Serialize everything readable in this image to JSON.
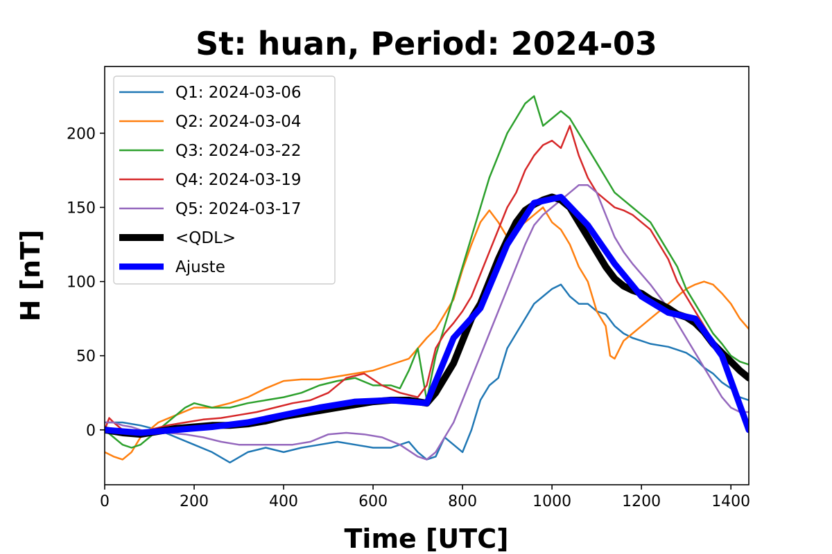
{
  "chart_data": {
    "type": "line",
    "title": "St: huan, Period: 2024-03",
    "xlabel": "Time [UTC]",
    "ylabel": "H [nT]",
    "xlim": [
      0,
      1440
    ],
    "ylim": [
      -37,
      245
    ],
    "xticks": [
      0,
      200,
      400,
      600,
      800,
      1000,
      1200,
      1400
    ],
    "yticks": [
      0,
      50,
      100,
      150,
      200
    ],
    "grid": false,
    "legend_position": "top-left",
    "series": [
      {
        "name": "Q1: 2024-03-06",
        "color": "#1f77b4",
        "width": 2.5,
        "x": [
          0,
          40,
          80,
          120,
          160,
          200,
          240,
          280,
          320,
          360,
          400,
          440,
          480,
          520,
          560,
          600,
          640,
          680,
          700,
          720,
          740,
          760,
          780,
          800,
          820,
          840,
          860,
          880,
          900,
          920,
          940,
          960,
          980,
          1000,
          1020,
          1040,
          1060,
          1080,
          1100,
          1120,
          1140,
          1160,
          1180,
          1200,
          1220,
          1240,
          1260,
          1280,
          1300,
          1320,
          1340,
          1360,
          1380,
          1400,
          1420,
          1440
        ],
        "y": [
          5,
          5,
          3,
          0,
          -5,
          -10,
          -15,
          -22,
          -15,
          -12,
          -15,
          -12,
          -10,
          -8,
          -10,
          -12,
          -12,
          -8,
          -15,
          -20,
          -18,
          -5,
          -10,
          -15,
          0,
          20,
          30,
          35,
          55,
          65,
          75,
          85,
          90,
          95,
          98,
          90,
          85,
          85,
          80,
          78,
          70,
          65,
          62,
          60,
          58,
          57,
          56,
          54,
          52,
          48,
          42,
          38,
          32,
          28,
          22,
          20
        ]
      },
      {
        "name": "Q2: 2024-03-04",
        "color": "#ff7f0e",
        "width": 2.5,
        "x": [
          0,
          20,
          40,
          60,
          80,
          100,
          120,
          160,
          200,
          240,
          280,
          320,
          360,
          400,
          440,
          480,
          520,
          560,
          600,
          640,
          680,
          700,
          720,
          740,
          760,
          780,
          800,
          820,
          840,
          860,
          880,
          900,
          920,
          940,
          960,
          980,
          1000,
          1020,
          1040,
          1060,
          1080,
          1100,
          1120,
          1130,
          1140,
          1160,
          1180,
          1200,
          1220,
          1240,
          1260,
          1280,
          1300,
          1320,
          1340,
          1360,
          1380,
          1400,
          1420,
          1440
        ],
        "y": [
          -15,
          -18,
          -20,
          -15,
          -5,
          0,
          5,
          10,
          15,
          15,
          18,
          22,
          28,
          33,
          34,
          34,
          36,
          38,
          40,
          44,
          48,
          55,
          62,
          68,
          78,
          88,
          108,
          125,
          140,
          148,
          140,
          130,
          135,
          140,
          145,
          150,
          140,
          135,
          125,
          110,
          100,
          80,
          70,
          50,
          48,
          60,
          65,
          70,
          75,
          80,
          85,
          90,
          95,
          98,
          100,
          98,
          92,
          85,
          75,
          68
        ]
      },
      {
        "name": "Q3: 2024-03-22",
        "color": "#2ca02c",
        "width": 2.5,
        "x": [
          0,
          20,
          40,
          60,
          80,
          100,
          120,
          140,
          160,
          180,
          200,
          240,
          280,
          320,
          360,
          400,
          440,
          480,
          520,
          560,
          600,
          640,
          660,
          680,
          700,
          720,
          740,
          760,
          780,
          800,
          820,
          840,
          860,
          880,
          900,
          920,
          940,
          960,
          980,
          1000,
          1020,
          1040,
          1060,
          1080,
          1100,
          1120,
          1140,
          1160,
          1180,
          1200,
          1220,
          1240,
          1260,
          1280,
          1300,
          1320,
          1340,
          1360,
          1380,
          1400,
          1420,
          1440
        ],
        "y": [
          0,
          -5,
          -10,
          -12,
          -10,
          -5,
          0,
          5,
          10,
          15,
          18,
          15,
          15,
          18,
          20,
          22,
          25,
          30,
          33,
          35,
          30,
          30,
          28,
          40,
          55,
          20,
          50,
          70,
          90,
          110,
          130,
          150,
          170,
          185,
          200,
          210,
          220,
          225,
          205,
          210,
          215,
          210,
          200,
          190,
          180,
          170,
          160,
          155,
          150,
          145,
          140,
          130,
          120,
          110,
          95,
          85,
          75,
          65,
          58,
          50,
          46,
          44
        ]
      },
      {
        "name": "Q4: 2024-03-19",
        "color": "#d62728",
        "width": 2.5,
        "x": [
          0,
          10,
          20,
          40,
          60,
          100,
          140,
          180,
          220,
          260,
          300,
          340,
          380,
          420,
          460,
          500,
          540,
          580,
          620,
          660,
          700,
          720,
          740,
          760,
          780,
          800,
          820,
          840,
          860,
          880,
          900,
          920,
          940,
          960,
          980,
          1000,
          1020,
          1040,
          1060,
          1080,
          1100,
          1120,
          1140,
          1160,
          1180,
          1200,
          1220,
          1240,
          1260,
          1280,
          1300,
          1320,
          1340,
          1360,
          1380,
          1400,
          1420,
          1440
        ],
        "y": [
          0,
          8,
          5,
          0,
          -2,
          0,
          3,
          5,
          7,
          8,
          10,
          12,
          15,
          18,
          20,
          25,
          35,
          38,
          30,
          25,
          22,
          30,
          55,
          65,
          72,
          80,
          90,
          105,
          120,
          135,
          150,
          160,
          175,
          185,
          192,
          195,
          190,
          205,
          185,
          170,
          160,
          155,
          150,
          148,
          145,
          140,
          135,
          125,
          115,
          100,
          90,
          80,
          70,
          60,
          52,
          46,
          40,
          35
        ]
      },
      {
        "name": "Q5: 2024-03-17",
        "color": "#9467bd",
        "width": 2.5,
        "x": [
          0,
          20,
          40,
          60,
          80,
          100,
          140,
          180,
          220,
          260,
          300,
          340,
          380,
          420,
          460,
          500,
          540,
          580,
          620,
          660,
          700,
          720,
          740,
          760,
          780,
          800,
          820,
          840,
          860,
          880,
          900,
          920,
          940,
          960,
          980,
          1000,
          1020,
          1040,
          1060,
          1080,
          1100,
          1120,
          1140,
          1160,
          1180,
          1200,
          1220,
          1240,
          1260,
          1280,
          1300,
          1320,
          1340,
          1360,
          1380,
          1400,
          1420,
          1440
        ],
        "y": [
          5,
          5,
          3,
          2,
          0,
          -2,
          -2,
          -3,
          -5,
          -8,
          -10,
          -10,
          -10,
          -10,
          -8,
          -3,
          -2,
          -3,
          -5,
          -10,
          -18,
          -20,
          -15,
          -5,
          5,
          20,
          35,
          50,
          65,
          80,
          95,
          110,
          125,
          138,
          145,
          150,
          155,
          160,
          165,
          165,
          160,
          145,
          130,
          120,
          112,
          105,
          98,
          90,
          82,
          72,
          62,
          52,
          42,
          32,
          22,
          15,
          12,
          12
        ]
      },
      {
        "name": "<QDL>",
        "color": "#000000",
        "width": 10,
        "x": [
          0,
          40,
          80,
          120,
          160,
          200,
          240,
          280,
          320,
          360,
          400,
          440,
          480,
          520,
          560,
          600,
          640,
          680,
          700,
          720,
          740,
          760,
          780,
          800,
          820,
          840,
          860,
          880,
          900,
          920,
          940,
          960,
          980,
          1000,
          1020,
          1040,
          1060,
          1080,
          1100,
          1120,
          1140,
          1160,
          1180,
          1200,
          1220,
          1240,
          1260,
          1280,
          1300,
          1320,
          1340,
          1360,
          1380,
          1400,
          1420,
          1440
        ],
        "y": [
          0,
          -2,
          -3,
          -1,
          1,
          2,
          3,
          3,
          4,
          6,
          9,
          11,
          13,
          15,
          17,
          19,
          20,
          20,
          19,
          18,
          25,
          35,
          45,
          60,
          75,
          85,
          100,
          115,
          128,
          140,
          148,
          152,
          155,
          157,
          155,
          150,
          140,
          130,
          120,
          110,
          102,
          97,
          94,
          92,
          88,
          85,
          82,
          78,
          76,
          72,
          66,
          58,
          52,
          46,
          40,
          35
        ]
      },
      {
        "name": "Ajuste",
        "color": "#0000ff",
        "width": 9,
        "x": [
          0,
          80,
          160,
          240,
          320,
          400,
          480,
          560,
          640,
          720,
          780,
          840,
          900,
          960,
          1020,
          1080,
          1140,
          1200,
          1260,
          1320,
          1380,
          1440
        ],
        "y": [
          0,
          -2,
          0,
          2,
          5,
          10,
          15,
          19,
          20,
          18,
          62,
          82,
          125,
          153,
          157,
          138,
          112,
          90,
          79,
          75,
          50,
          0
        ]
      }
    ]
  }
}
